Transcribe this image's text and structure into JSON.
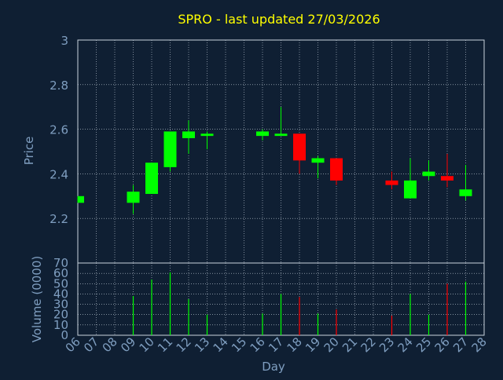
{
  "title": "SPRO - last updated 27/03/2026",
  "colors": {
    "background": "#0f1f33",
    "axis_text": "#7f9ec0",
    "title": "#ffff00",
    "grid": "#c8d3de",
    "frame": "#c8d3de",
    "up": "#00ff00",
    "down": "#ff0000"
  },
  "chart_data": [
    {
      "type": "candlestick",
      "ylabel": "Price",
      "ylim": [
        2.0,
        3.0
      ],
      "yticks": [
        "2.2",
        "2.4",
        "2.6",
        "2.8",
        "3"
      ],
      "grid": true,
      "candles": [
        {
          "x": "06",
          "open": 2.27,
          "high": 2.3,
          "low": 2.27,
          "close": 2.3
        },
        {
          "x": "09",
          "open": 2.27,
          "high": 2.35,
          "low": 2.22,
          "close": 2.32
        },
        {
          "x": "10",
          "open": 2.31,
          "high": 2.45,
          "low": 2.31,
          "close": 2.45
        },
        {
          "x": "11",
          "open": 2.43,
          "high": 2.59,
          "low": 2.41,
          "close": 2.59
        },
        {
          "x": "12",
          "open": 2.56,
          "high": 2.64,
          "low": 2.49,
          "close": 2.59
        },
        {
          "x": "13",
          "open": 2.57,
          "high": 2.59,
          "low": 2.51,
          "close": 2.58
        },
        {
          "x": "16",
          "open": 2.57,
          "high": 2.6,
          "low": 2.55,
          "close": 2.59
        },
        {
          "x": "17",
          "open": 2.57,
          "high": 2.7,
          "low": 2.57,
          "close": 2.58
        },
        {
          "x": "18",
          "open": 2.58,
          "high": 2.58,
          "low": 2.4,
          "close": 2.46
        },
        {
          "x": "19",
          "open": 2.45,
          "high": 2.48,
          "low": 2.38,
          "close": 2.47
        },
        {
          "x": "20",
          "open": 2.47,
          "high": 2.47,
          "low": 2.35,
          "close": 2.37
        },
        {
          "x": "23",
          "open": 2.37,
          "high": 2.41,
          "low": 2.33,
          "close": 2.35
        },
        {
          "x": "24",
          "open": 2.29,
          "high": 2.47,
          "low": 2.29,
          "close": 2.37
        },
        {
          "x": "25",
          "open": 2.39,
          "high": 2.46,
          "low": 2.37,
          "close": 2.41
        },
        {
          "x": "26",
          "open": 2.39,
          "high": 2.49,
          "low": 2.34,
          "close": 2.37
        },
        {
          "x": "27",
          "open": 2.3,
          "high": 2.44,
          "low": 2.28,
          "close": 2.33
        }
      ]
    },
    {
      "type": "bar",
      "ylabel": "Volume (0000)",
      "xlabel": "Day",
      "ylim": [
        0,
        70
      ],
      "yticks": [
        "0",
        "10",
        "20",
        "30",
        "40",
        "50",
        "60",
        "70"
      ],
      "grid": true,
      "categories": [
        "06",
        "07",
        "08",
        "09",
        "10",
        "11",
        "12",
        "13",
        "14",
        "15",
        "16",
        "17",
        "18",
        "19",
        "20",
        "21",
        "22",
        "23",
        "24",
        "25",
        "26",
        "27",
        "28"
      ],
      "bars": [
        {
          "x": "06",
          "value": 0,
          "direction": "up"
        },
        {
          "x": "09",
          "value": 38,
          "direction": "up"
        },
        {
          "x": "10",
          "value": 54,
          "direction": "up"
        },
        {
          "x": "11",
          "value": 61,
          "direction": "up"
        },
        {
          "x": "12",
          "value": 35,
          "direction": "up"
        },
        {
          "x": "13",
          "value": 20,
          "direction": "up"
        },
        {
          "x": "16",
          "value": 21,
          "direction": "up"
        },
        {
          "x": "17",
          "value": 40,
          "direction": "up"
        },
        {
          "x": "18",
          "value": 37,
          "direction": "down"
        },
        {
          "x": "19",
          "value": 21,
          "direction": "up"
        },
        {
          "x": "20",
          "value": 25,
          "direction": "down"
        },
        {
          "x": "23",
          "value": 19,
          "direction": "down"
        },
        {
          "x": "24",
          "value": 40,
          "direction": "up"
        },
        {
          "x": "25",
          "value": 20,
          "direction": "up"
        },
        {
          "x": "26",
          "value": 50,
          "direction": "down"
        },
        {
          "x": "27",
          "value": 52,
          "direction": "up"
        }
      ]
    }
  ]
}
